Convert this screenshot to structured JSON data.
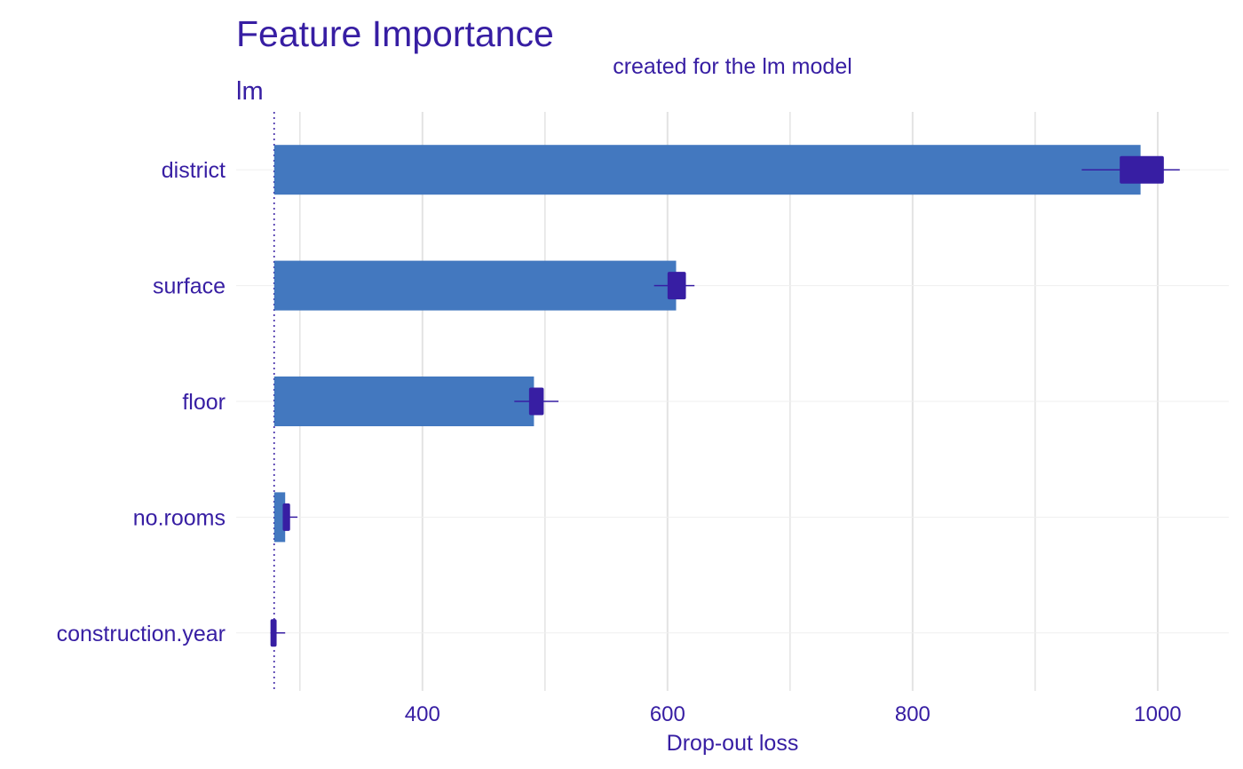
{
  "colors": {
    "text": "#371ea3",
    "bar": "#4378bf",
    "box": "#371ea3",
    "grid": "#e3e3e3"
  },
  "chart_data": {
    "type": "bar",
    "orientation": "horizontal",
    "title": "Feature Importance",
    "subtitle": "created for the lm model",
    "panel_label": "lm",
    "xlabel": "Drop-out loss",
    "ylabel": "",
    "xlim": [
      248,
      1058
    ],
    "x_ticks": [
      400,
      600,
      800,
      1000
    ],
    "baseline": 279,
    "grid": true,
    "legend": "none",
    "categories": [
      "district",
      "surface",
      "floor",
      "no.rooms",
      "construction.year"
    ],
    "values": [
      986,
      607,
      491,
      288,
      279
    ],
    "boxplots": [
      {
        "category": "district",
        "min": 938,
        "q1": 969,
        "q3": 1005,
        "max": 1018
      },
      {
        "category": "surface",
        "min": 589,
        "q1": 600,
        "q3": 615,
        "max": 622
      },
      {
        "category": "floor",
        "min": 475,
        "q1": 487,
        "q3": 499,
        "max": 511
      },
      {
        "category": "no.rooms",
        "min": 286,
        "q1": 286,
        "q3": 292,
        "max": 298
      },
      {
        "category": "construction.year",
        "min": 276,
        "q1": 276,
        "q3": 281,
        "max": 288
      }
    ]
  }
}
